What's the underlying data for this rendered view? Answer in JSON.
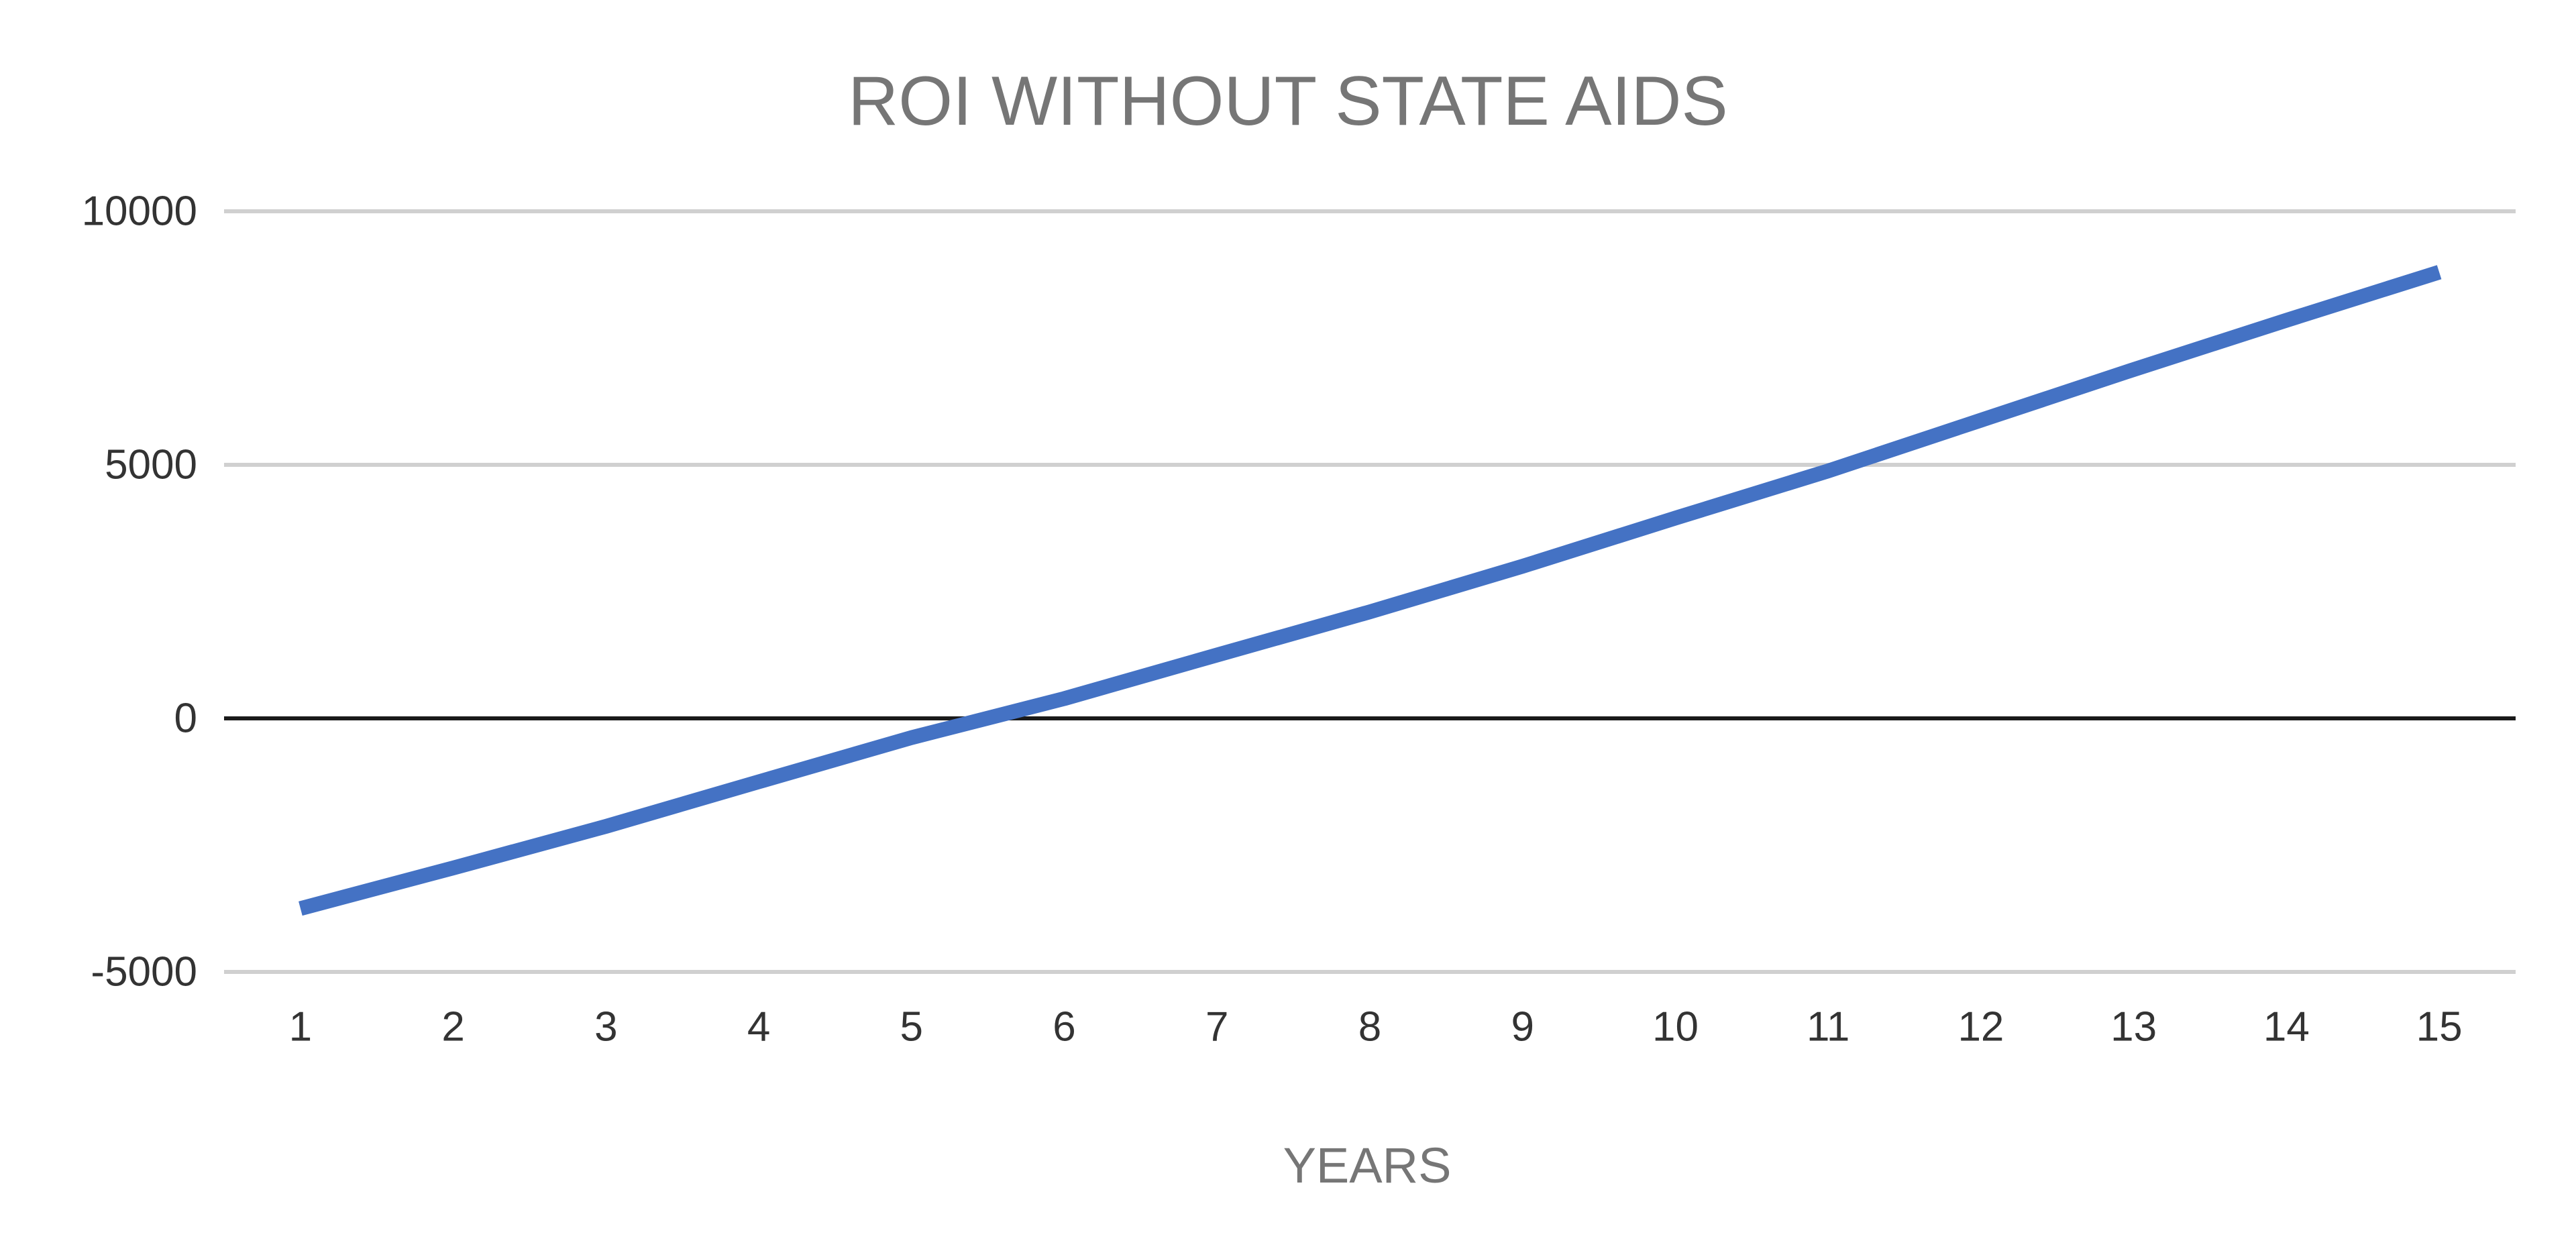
{
  "chart_data": {
    "type": "line",
    "title": "ROI WITHOUT STATE AIDS",
    "xlabel": "YEARS",
    "ylabel": "",
    "categories": [
      "1",
      "2",
      "3",
      "4",
      "5",
      "6",
      "7",
      "8",
      "9",
      "10",
      "11",
      "12",
      "13",
      "14",
      "15"
    ],
    "series": [
      {
        "values": [
          -3750,
          -2950,
          -2130,
          -1250,
          -380,
          390,
          1250,
          2100,
          3000,
          3950,
          4880,
          5880,
          6880,
          7850,
          8800
        ]
      }
    ],
    "ylim": [
      -5000,
      10000
    ],
    "yticks": [
      10000,
      5000,
      0,
      -5000
    ],
    "grid": true,
    "legend": "none",
    "colors": {
      "series": "#4472c4",
      "grid": "#d0d0d0",
      "zero_line": "#1a1a1a"
    }
  }
}
